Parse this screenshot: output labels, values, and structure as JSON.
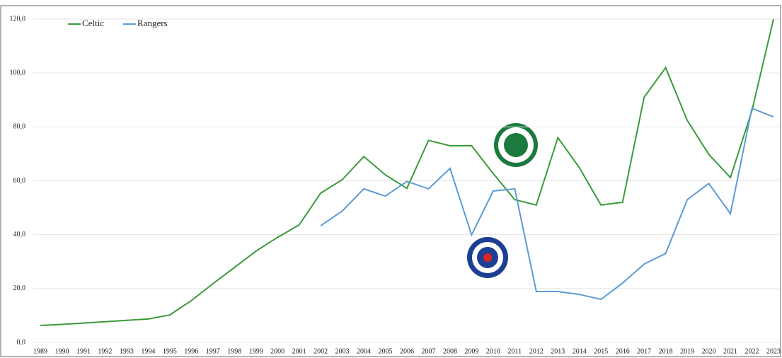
{
  "chart_data": {
    "type": "line",
    "categories": [
      "1989",
      "1990",
      "1991",
      "1992",
      "1993",
      "1994",
      "1995",
      "1996",
      "1997",
      "1998",
      "1999",
      "2000",
      "2001",
      "2002",
      "2003",
      "2004",
      "2005",
      "2006",
      "2007",
      "2008",
      "2009",
      "2010",
      "2011",
      "2012",
      "2013",
      "2014",
      "2015",
      "2016",
      "2017",
      "2018",
      "2019",
      "2020",
      "2021",
      "2022",
      "2023"
    ],
    "series": [
      {
        "name": "Celtic",
        "color": "#3a9a3a",
        "values": [
          6.3,
          6.7,
          7.2,
          7.7,
          8.2,
          8.7,
          10.2,
          15.5,
          21.8,
          27.8,
          33.9,
          39,
          43.6,
          55.4,
          60.4,
          69,
          62.2,
          57.2,
          75,
          73,
          73,
          62.7,
          53,
          51,
          76,
          64.8,
          51,
          52,
          91,
          102,
          82.4,
          69.8,
          61.2,
          86,
          120
        ]
      },
      {
        "name": "Rangers",
        "color": "#5b9bd5",
        "values": [
          null,
          null,
          null,
          null,
          null,
          null,
          null,
          null,
          null,
          null,
          null,
          null,
          null,
          43.3,
          48.8,
          57,
          54.3,
          59.8,
          57,
          64.6,
          39.9,
          56.2,
          57,
          18.9,
          18.9,
          17.8,
          16,
          22,
          29.1,
          33,
          53,
          59,
          47.8,
          86.9,
          83.7
        ]
      }
    ],
    "ylim": [
      0,
      120
    ],
    "yticks": [
      {
        "value": 0,
        "label": "0,0"
      },
      {
        "value": 20,
        "label": "20,0"
      },
      {
        "value": 40,
        "label": "40,0"
      },
      {
        "value": 60,
        "label": "60,0"
      },
      {
        "value": 80,
        "label": "80,0"
      },
      {
        "value": 100,
        "label": "100,0"
      },
      {
        "value": 120,
        "label": "120,0"
      }
    ],
    "grid": true,
    "legend": "top-left"
  }
}
